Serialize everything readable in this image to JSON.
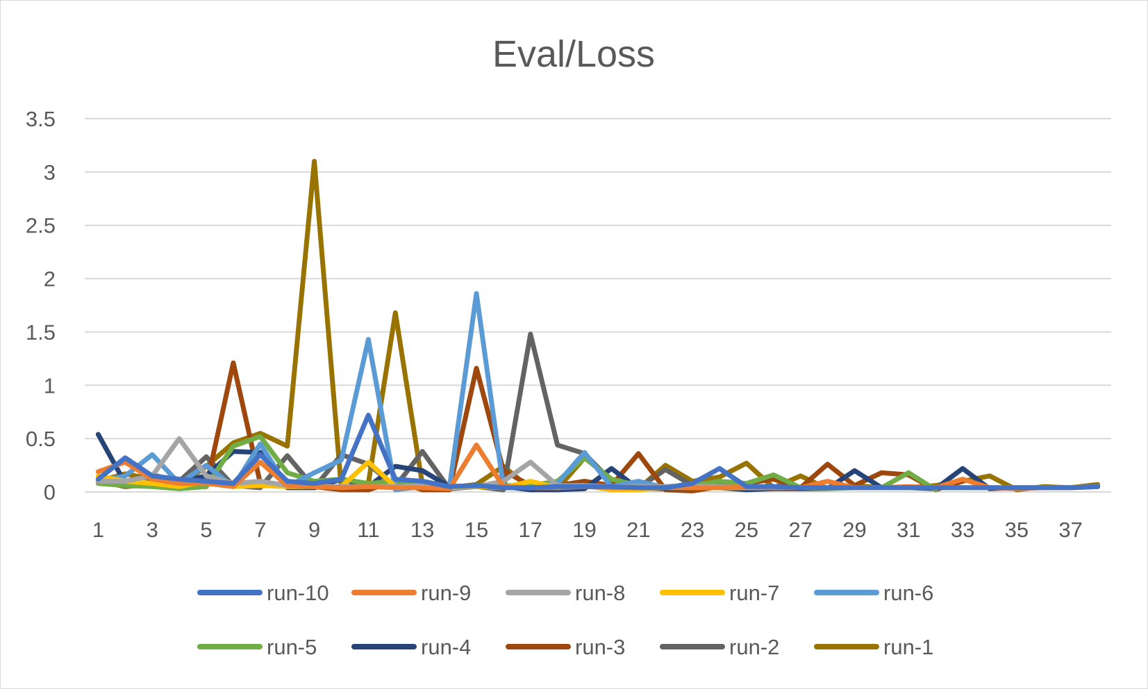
{
  "chart_data": {
    "type": "line",
    "title": "Eval/Loss",
    "xlabel": "",
    "ylabel": "",
    "ylim": [
      0,
      3.5
    ],
    "yticks": [
      0,
      0.5,
      1,
      1.5,
      2,
      2.5,
      3,
      3.5
    ],
    "xlim": [
      1,
      38
    ],
    "xtick_labels": [
      1,
      3,
      5,
      7,
      9,
      11,
      13,
      15,
      17,
      19,
      21,
      23,
      25,
      27,
      29,
      31,
      33,
      35,
      37
    ],
    "grid": true,
    "legend_position": "bottom",
    "series": [
      {
        "name": "run-10",
        "color": "#4472C4",
        "x": [
          1,
          2,
          3,
          4,
          5,
          6,
          7,
          8,
          9,
          10,
          11,
          12,
          13,
          14,
          15,
          16,
          17,
          18,
          19,
          20,
          21,
          22,
          23,
          24,
          25,
          26,
          27,
          28,
          29,
          30,
          31,
          32,
          33,
          34,
          35,
          36,
          37,
          38
        ],
        "values": [
          0.12,
          0.32,
          0.15,
          0.12,
          0.1,
          0.08,
          0.35,
          0.1,
          0.08,
          0.12,
          0.72,
          0.12,
          0.1,
          0.05,
          0.06,
          0.04,
          0.04,
          0.05,
          0.05,
          0.05,
          0.04,
          0.04,
          0.08,
          0.22,
          0.05,
          0.05,
          0.04,
          0.04,
          0.04,
          0.04,
          0.04,
          0.04,
          0.04,
          0.04,
          0.04,
          0.04,
          0.04,
          0.05
        ]
      },
      {
        "name": "run-9",
        "color": "#ED7D31",
        "x": [
          1,
          2,
          3,
          4,
          5,
          6,
          7,
          8,
          9,
          10,
          11,
          12,
          13,
          14,
          15,
          16,
          17,
          18,
          19,
          20,
          21,
          22,
          23,
          24,
          25,
          26,
          27,
          28,
          29,
          30,
          31,
          32,
          33,
          34,
          35,
          36,
          37,
          38
        ],
        "values": [
          0.19,
          0.28,
          0.12,
          0.08,
          0.08,
          0.05,
          0.28,
          0.06,
          0.05,
          0.04,
          0.05,
          0.04,
          0.04,
          0.03,
          0.44,
          0.05,
          0.04,
          0.04,
          0.05,
          0.04,
          0.04,
          0.04,
          0.04,
          0.04,
          0.05,
          0.04,
          0.04,
          0.1,
          0.04,
          0.04,
          0.05,
          0.04,
          0.12,
          0.04,
          0.03,
          0.04,
          0.04,
          0.05
        ]
      },
      {
        "name": "run-8",
        "color": "#A5A5A5",
        "x": [
          1,
          2,
          3,
          4,
          5,
          6,
          7,
          8,
          9,
          10,
          11,
          12,
          13,
          14,
          15,
          16,
          17,
          18,
          19,
          20,
          21,
          22,
          23,
          24,
          25,
          26,
          27,
          28,
          29,
          30,
          31,
          32,
          33,
          34,
          35,
          36,
          37,
          38
        ],
        "values": [
          0.1,
          0.1,
          0.15,
          0.5,
          0.15,
          0.08,
          0.1,
          0.06,
          0.05,
          0.05,
          0.05,
          0.05,
          0.06,
          0.05,
          0.05,
          0.1,
          0.28,
          0.06,
          0.06,
          0.05,
          0.05,
          0.05,
          0.05,
          0.05,
          0.04,
          0.04,
          0.04,
          0.04,
          0.04,
          0.04,
          0.04,
          0.04,
          0.04,
          0.04,
          0.04,
          0.04,
          0.04,
          0.05
        ]
      },
      {
        "name": "run-7",
        "color": "#FFC000",
        "x": [
          1,
          2,
          3,
          4,
          5,
          6,
          7,
          8,
          9,
          10,
          11,
          12,
          13,
          14,
          15,
          16,
          17,
          18,
          19,
          20,
          21,
          22,
          23,
          24,
          25,
          26,
          27,
          28,
          29,
          30,
          31,
          32,
          33,
          34,
          35,
          36,
          37,
          38
        ],
        "values": [
          0.15,
          0.1,
          0.08,
          0.05,
          0.1,
          0.05,
          0.06,
          0.05,
          0.05,
          0.05,
          0.28,
          0.05,
          0.05,
          0.04,
          0.05,
          0.04,
          0.1,
          0.04,
          0.06,
          0.02,
          0.02,
          0.04,
          0.04,
          0.04,
          0.04,
          0.04,
          0.04,
          0.04,
          0.04,
          0.04,
          0.04,
          0.04,
          0.04,
          0.04,
          0.04,
          0.04,
          0.04,
          0.05
        ]
      },
      {
        "name": "run-6",
        "color": "#5B9BD5",
        "x": [
          1,
          2,
          3,
          4,
          5,
          6,
          7,
          8,
          9,
          10,
          11,
          12,
          13,
          14,
          15,
          16,
          17,
          18,
          19,
          20,
          21,
          22,
          23,
          24,
          25,
          26,
          27,
          28,
          29,
          30,
          31,
          32,
          33,
          34,
          35,
          36,
          37,
          38
        ],
        "values": [
          0.1,
          0.15,
          0.35,
          0.08,
          0.25,
          0.05,
          0.45,
          0.05,
          0.18,
          0.3,
          1.43,
          0.02,
          0.05,
          0.04,
          1.86,
          0.04,
          0.04,
          0.08,
          0.37,
          0.05,
          0.1,
          0.04,
          0.04,
          0.04,
          0.04,
          0.04,
          0.04,
          0.04,
          0.04,
          0.04,
          0.04,
          0.04,
          0.04,
          0.04,
          0.04,
          0.04,
          0.04,
          0.05
        ]
      },
      {
        "name": "run-5",
        "color": "#70AD47",
        "x": [
          1,
          2,
          3,
          4,
          5,
          6,
          7,
          8,
          9,
          10,
          11,
          12,
          13,
          14,
          15,
          16,
          17,
          18,
          19,
          20,
          21,
          22,
          23,
          24,
          25,
          26,
          27,
          28,
          29,
          30,
          31,
          32
        ],
        "values": [
          0.08,
          0.06,
          0.05,
          0.03,
          0.05,
          0.43,
          0.52,
          0.18,
          0.1,
          0.12,
          0.08,
          0.1,
          0.1,
          0.05,
          0.06,
          0.06,
          0.06,
          0.1,
          0.32,
          0.12,
          0.06,
          0.05,
          0.06,
          0.1,
          0.08,
          0.16,
          0.04,
          0.03,
          0.04,
          0.04,
          0.18,
          0.02
        ]
      },
      {
        "name": "run-4",
        "color": "#264478",
        "x": [
          1,
          2,
          3,
          4,
          5,
          6,
          7,
          8,
          9,
          10,
          11,
          12,
          13,
          14,
          15,
          16,
          17,
          18,
          19,
          20,
          21,
          22,
          23,
          24,
          25,
          26,
          27,
          28,
          29,
          30,
          31,
          32,
          33,
          34,
          35
        ],
        "values": [
          0.54,
          0.08,
          0.08,
          0.1,
          0.15,
          0.38,
          0.37,
          0.04,
          0.04,
          0.12,
          0.05,
          0.24,
          0.2,
          0.05,
          0.06,
          0.05,
          0.02,
          0.02,
          0.03,
          0.22,
          0.03,
          0.03,
          0.04,
          0.04,
          0.02,
          0.03,
          0.03,
          0.03,
          0.2,
          0.04,
          0.04,
          0.03,
          0.22,
          0.03,
          0.04
        ]
      },
      {
        "name": "run-3",
        "color": "#9E480E",
        "x": [
          1,
          2,
          3,
          4,
          5,
          6,
          7,
          8,
          9,
          10,
          11,
          12,
          13,
          14,
          15,
          16,
          17,
          18,
          19,
          20,
          21,
          22,
          23,
          24,
          25,
          26,
          27,
          28,
          29,
          30,
          31,
          32,
          33
        ],
        "values": [
          0.1,
          0.05,
          0.07,
          0.06,
          0.05,
          1.21,
          0.08,
          0.06,
          0.05,
          0.02,
          0.02,
          0.1,
          0.02,
          0.02,
          1.16,
          0.2,
          0.06,
          0.06,
          0.1,
          0.06,
          0.36,
          0.02,
          0.01,
          0.05,
          0.08,
          0.12,
          0.04,
          0.26,
          0.06,
          0.18,
          0.16,
          0.02,
          0.1
        ]
      },
      {
        "name": "run-2",
        "color": "#636363",
        "x": [
          1,
          2,
          3,
          4,
          5,
          6,
          7,
          8,
          9,
          10,
          11,
          12,
          13,
          14,
          15,
          16,
          17,
          18,
          19,
          20,
          21,
          22,
          23,
          24,
          25,
          26,
          27,
          28,
          29,
          30,
          31,
          32,
          33
        ],
        "values": [
          0.1,
          0.1,
          0.16,
          0.1,
          0.33,
          0.06,
          0.04,
          0.34,
          0.04,
          0.35,
          0.26,
          0.05,
          0.38,
          0.03,
          0.05,
          0.02,
          1.48,
          0.44,
          0.36,
          0.1,
          0.04,
          0.21,
          0.06,
          0.06,
          0.04,
          0.04,
          0.04,
          0.04,
          0.04,
          0.04,
          0.04,
          0.04,
          0.04
        ]
      },
      {
        "name": "run-1",
        "color": "#997300",
        "x": [
          1,
          2,
          3,
          4,
          5,
          6,
          7,
          8,
          9,
          10,
          11,
          12,
          13,
          14,
          15,
          16,
          17,
          18,
          19,
          20,
          21,
          22,
          23,
          24,
          25,
          26,
          27,
          28,
          29,
          30,
          31,
          32,
          33,
          34,
          35,
          36,
          37,
          38
        ],
        "values": [
          0.1,
          0.17,
          0.12,
          0.06,
          0.24,
          0.46,
          0.55,
          0.43,
          3.1,
          0.03,
          0.08,
          1.68,
          0.07,
          0.04,
          0.07,
          0.24,
          0.03,
          0.03,
          0.32,
          0.12,
          0.03,
          0.25,
          0.1,
          0.14,
          0.27,
          0.04,
          0.15,
          0.03,
          0.06,
          0.04,
          0.04,
          0.06,
          0.1,
          0.15,
          0.02,
          0.05,
          0.04,
          0.07
        ]
      }
    ]
  }
}
